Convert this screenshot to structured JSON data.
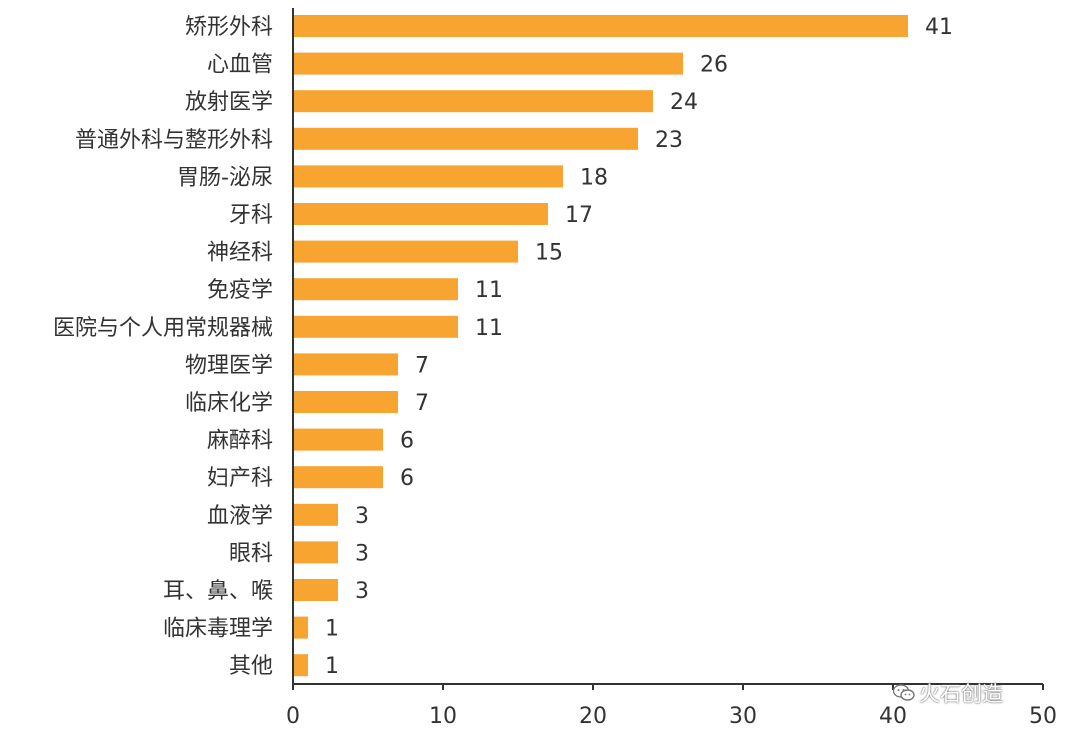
{
  "chart_data": {
    "type": "bar",
    "orientation": "horizontal",
    "categories": [
      "矫形外科",
      "心血管",
      "放射医学",
      "普通外科与整形外科",
      "胃肠-泌尿",
      "牙科",
      "神经科",
      "免疫学",
      "医院与个人用常规器械",
      "物理医学",
      "临床化学",
      "麻醉科",
      "妇产科",
      "血液学",
      "眼科",
      "耳、鼻、喉",
      "临床毒理学",
      "其他"
    ],
    "values": [
      41,
      26,
      24,
      23,
      18,
      17,
      15,
      11,
      11,
      7,
      7,
      6,
      6,
      3,
      3,
      3,
      1,
      1
    ],
    "xlim": [
      0,
      50
    ],
    "xticks": [
      "0",
      "10",
      "20",
      "30",
      "40",
      "50"
    ],
    "grid": false,
    "title": "",
    "xlabel": "",
    "ylabel": "",
    "bar_color": "#F7A431",
    "axis_color": "#333333"
  },
  "watermark": {
    "text": "火石创造",
    "icon": "wechat-icon"
  }
}
